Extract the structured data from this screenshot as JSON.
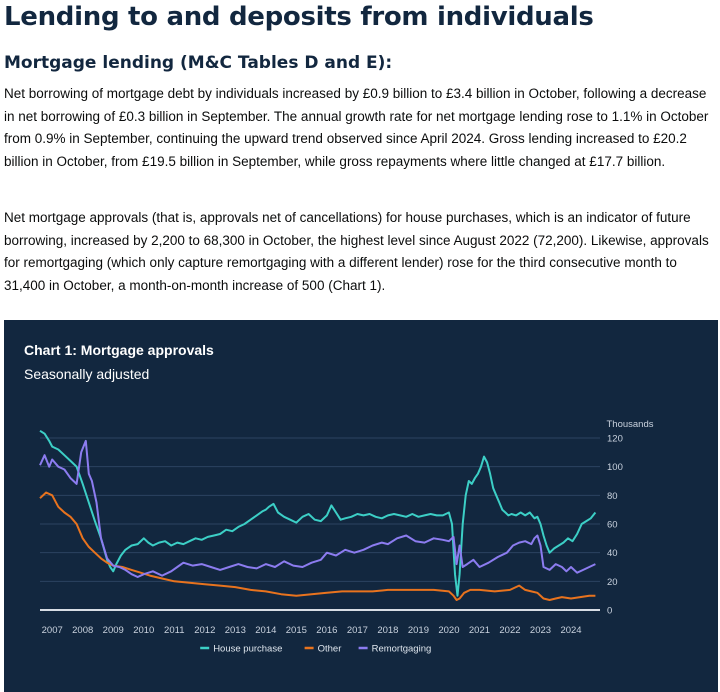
{
  "page": {
    "title": "Lending to and deposits from individuals",
    "section_heading": "Mortgage lending (M&C Tables D and E):",
    "paragraphs": [
      "Net borrowing of mortgage debt by individuals increased by £0.9 billion to £3.4 billion in October, following a decrease in net borrowing of £0.3 billion in September. The annual growth rate for net mortgage lending rose to 1.1% in October from 0.9% in September, continuing the upward trend observed since April 2024. Gross lending increased to £20.2 billion in October, from £19.5 billion in September, while gross repayments where little changed at £17.7 billion.",
      "Net mortgage approvals (that is, approvals net of cancellations) for house purchases, which is an indicator of future borrowing, increased by 2,200 to 68,300 in October, the highest level since August 2022 (72,200). Likewise, approvals for remortgaging (which only capture remortgaging with a different lender) rose for the third consecutive month to 31,400 in October, a month-on-month increase of 500 (Chart 1)."
    ]
  },
  "chart_data": {
    "type": "line",
    "title": "Chart 1: Mortgage approvals",
    "subtitle": "Seasonally adjusted",
    "ylabel": "Thousands",
    "xlabel": "",
    "ylim": [
      0,
      120
    ],
    "yticks": [
      "0",
      "20",
      "40",
      "60",
      "80",
      "100",
      "120"
    ],
    "xlim": [
      2006.6,
      2024.95
    ],
    "xticks": [
      "2007",
      "2008",
      "2009",
      "2010",
      "2011",
      "2012",
      "2013",
      "2014",
      "2015",
      "2016",
      "2017",
      "2018",
      "2019",
      "2020",
      "2021",
      "2022",
      "2023",
      "2024"
    ],
    "legend_position": "bottom-center",
    "colors": {
      "background": "#12273f",
      "grid": "#2c4361",
      "zero_line": "#d8dde4"
    },
    "series": [
      {
        "name": "House purchase",
        "color": "#3ccfc6",
        "x": [
          2006.6,
          2006.75,
          2006.9,
          2007.0,
          2007.2,
          2007.4,
          2007.6,
          2007.8,
          2008.0,
          2008.2,
          2008.4,
          2008.6,
          2008.8,
          2008.9,
          2009.0,
          2009.1,
          2009.25,
          2009.4,
          2009.6,
          2009.8,
          2010.0,
          2010.15,
          2010.3,
          2010.5,
          2010.7,
          2010.9,
          2011.1,
          2011.3,
          2011.5,
          2011.7,
          2011.9,
          2012.1,
          2012.3,
          2012.5,
          2012.7,
          2012.9,
          2013.1,
          2013.3,
          2013.5,
          2013.7,
          2013.9,
          2014.0,
          2014.1,
          2014.25,
          2014.4,
          2014.6,
          2014.8,
          2015.0,
          2015.2,
          2015.4,
          2015.6,
          2015.8,
          2016.0,
          2016.15,
          2016.3,
          2016.45,
          2016.6,
          2016.8,
          2017.0,
          2017.2,
          2017.4,
          2017.6,
          2017.8,
          2018.0,
          2018.2,
          2018.4,
          2018.6,
          2018.8,
          2019.0,
          2019.2,
          2019.4,
          2019.6,
          2019.8,
          2020.0,
          2020.1,
          2020.2,
          2020.28,
          2020.35,
          2020.45,
          2020.55,
          2020.65,
          2020.75,
          2020.85,
          2020.95,
          2021.05,
          2021.15,
          2021.25,
          2021.35,
          2021.45,
          2021.55,
          2021.65,
          2021.75,
          2021.85,
          2021.95,
          2022.05,
          2022.2,
          2022.35,
          2022.5,
          2022.65,
          2022.8,
          2022.9,
          2023.0,
          2023.1,
          2023.2,
          2023.3,
          2023.45,
          2023.6,
          2023.75,
          2023.9,
          2024.05,
          2024.2,
          2024.35,
          2024.5,
          2024.65,
          2024.8
        ],
        "values": [
          125,
          123,
          118,
          114,
          112,
          108,
          104,
          100,
          88,
          75,
          62,
          50,
          35,
          30,
          27,
          32,
          38,
          42,
          45,
          46,
          50,
          47,
          45,
          47,
          48,
          45,
          47,
          46,
          48,
          50,
          49,
          51,
          52,
          53,
          56,
          55,
          58,
          60,
          63,
          66,
          69,
          70,
          72,
          74,
          68,
          65,
          63,
          61,
          65,
          67,
          63,
          62,
          66,
          73,
          68,
          63,
          64,
          65,
          67,
          66,
          67,
          65,
          64,
          66,
          67,
          66,
          65,
          67,
          65,
          66,
          67,
          66,
          66,
          68,
          60,
          25,
          10,
          25,
          60,
          80,
          90,
          88,
          92,
          95,
          100,
          107,
          103,
          95,
          85,
          80,
          75,
          70,
          68,
          66,
          67,
          66,
          68,
          66,
          68,
          64,
          65,
          60,
          52,
          45,
          40,
          43,
          45,
          47,
          50,
          48,
          53,
          60,
          62,
          64,
          68
        ]
      },
      {
        "name": "Other",
        "color": "#e8731e",
        "x": [
          2006.6,
          2006.8,
          2007.0,
          2007.2,
          2007.4,
          2007.6,
          2007.8,
          2008.0,
          2008.2,
          2008.4,
          2008.6,
          2008.8,
          2009.0,
          2009.3,
          2009.6,
          2009.9,
          2010.2,
          2010.6,
          2011.0,
          2011.5,
          2012.0,
          2012.5,
          2013.0,
          2013.5,
          2014.0,
          2014.5,
          2015.0,
          2015.5,
          2016.0,
          2016.5,
          2017.0,
          2017.5,
          2018.0,
          2018.5,
          2019.0,
          2019.5,
          2020.0,
          2020.15,
          2020.25,
          2020.35,
          2020.5,
          2020.7,
          2021.0,
          2021.5,
          2022.0,
          2022.3,
          2022.5,
          2022.7,
          2022.9,
          2023.1,
          2023.3,
          2023.5,
          2023.7,
          2024.0,
          2024.3,
          2024.6,
          2024.8
        ],
        "values": [
          78,
          82,
          80,
          72,
          68,
          65,
          60,
          50,
          44,
          40,
          36,
          33,
          31,
          30,
          28,
          26,
          24,
          22,
          20,
          19,
          18,
          17,
          16,
          14,
          13,
          11,
          10,
          11,
          12,
          13,
          13,
          13,
          14,
          14,
          14,
          14,
          13,
          10,
          7,
          8,
          12,
          14,
          14,
          13,
          14,
          17,
          14,
          13,
          12,
          8,
          7,
          8,
          9,
          8,
          9,
          10,
          10
        ]
      },
      {
        "name": "Remortgaging",
        "color": "#8c7cf0",
        "x": [
          2006.6,
          2006.75,
          2006.9,
          2007.0,
          2007.2,
          2007.4,
          2007.6,
          2007.8,
          2007.95,
          2008.1,
          2008.2,
          2008.3,
          2008.45,
          2008.6,
          2008.8,
          2009.0,
          2009.2,
          2009.4,
          2009.6,
          2009.8,
          2010.0,
          2010.3,
          2010.6,
          2010.9,
          2011.1,
          2011.3,
          2011.6,
          2011.9,
          2012.2,
          2012.5,
          2012.8,
          2013.1,
          2013.4,
          2013.7,
          2014.0,
          2014.3,
          2014.6,
          2014.9,
          2015.2,
          2015.5,
          2015.8,
          2016.0,
          2016.3,
          2016.6,
          2016.9,
          2017.2,
          2017.5,
          2017.8,
          2018.0,
          2018.3,
          2018.6,
          2018.9,
          2019.2,
          2019.5,
          2019.8,
          2020.0,
          2020.15,
          2020.25,
          2020.35,
          2020.45,
          2020.6,
          2020.8,
          2021.0,
          2021.3,
          2021.6,
          2021.9,
          2022.1,
          2022.3,
          2022.5,
          2022.7,
          2022.8,
          2022.9,
          2023.0,
          2023.1,
          2023.3,
          2023.5,
          2023.7,
          2023.85,
          2024.0,
          2024.2,
          2024.4,
          2024.6,
          2024.8
        ],
        "values": [
          101,
          108,
          100,
          105,
          100,
          98,
          92,
          88,
          110,
          118,
          95,
          90,
          75,
          50,
          36,
          31,
          30,
          28,
          25,
          23,
          25,
          27,
          24,
          27,
          30,
          33,
          31,
          32,
          30,
          28,
          30,
          32,
          30,
          29,
          32,
          30,
          34,
          31,
          30,
          33,
          35,
          40,
          38,
          42,
          40,
          42,
          45,
          47,
          46,
          50,
          52,
          48,
          47,
          50,
          49,
          48,
          51,
          32,
          45,
          30,
          32,
          35,
          30,
          33,
          37,
          40,
          45,
          47,
          48,
          46,
          50,
          52,
          45,
          30,
          28,
          32,
          30,
          27,
          30,
          26,
          28,
          30,
          32
        ]
      }
    ]
  }
}
